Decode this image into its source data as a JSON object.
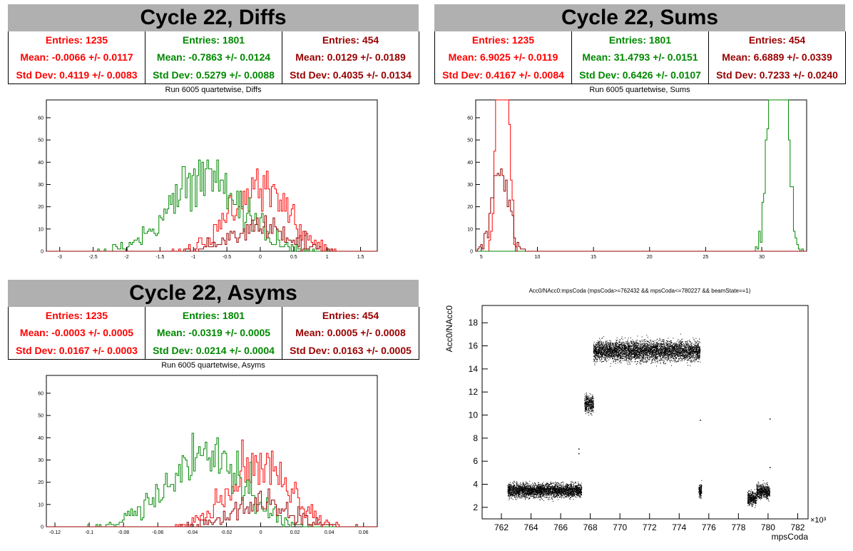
{
  "colors": {
    "red": "#ff0000",
    "green": "#008800",
    "darkred": "#990000"
  },
  "panels": [
    {
      "title": "Cycle 22, Diffs",
      "subtitle": "Run 6005 quartetwise, Diffs",
      "stats": [
        {
          "entries": "Entries: 1235",
          "mean": "Mean: -0.0066 +/- 0.0117",
          "std": "Std Dev: 0.4119 +/- 0.0083"
        },
        {
          "entries": "Entries: 1801",
          "mean": "Mean: -0.7863 +/- 0.0124",
          "std": "Std Dev: 0.5279 +/- 0.0088"
        },
        {
          "entries": "Entries: 454",
          "mean": "Mean: 0.0129 +/- 0.0189",
          "std": "Std Dev: 0.4035 +/- 0.0134"
        }
      ]
    },
    {
      "title": "Cycle 22, Sums",
      "subtitle": "Run 6005 quartetwise, Sums",
      "stats": [
        {
          "entries": "Entries: 1235",
          "mean": "Mean: 6.9025 +/- 0.0119",
          "std": "Std Dev: 0.4167 +/- 0.0084"
        },
        {
          "entries": "Entries: 1801",
          "mean": "Mean: 31.4793 +/- 0.0151",
          "std": "Std Dev: 0.6426 +/- 0.0107"
        },
        {
          "entries": "Entries: 454",
          "mean": "Mean: 6.6889 +/- 0.0339",
          "std": "Std Dev: 0.7233 +/- 0.0240"
        }
      ]
    },
    {
      "title": "Cycle 22, Asyms",
      "subtitle": "Run 6005 quartetwise, Asyms",
      "stats": [
        {
          "entries": "Entries: 1235",
          "mean": "Mean: -0.0003 +/- 0.0005",
          "std": "Std Dev: 0.0167 +/- 0.0003"
        },
        {
          "entries": "Entries: 1801",
          "mean": "Mean: -0.0319 +/- 0.0005",
          "std": "Std Dev: 0.0214 +/- 0.0004"
        },
        {
          "entries": "Entries: 454",
          "mean": "Mean: 0.0005 +/- 0.0008",
          "std": "Std Dev: 0.0163 +/- 0.0005"
        }
      ]
    }
  ],
  "chart_data": [
    {
      "type": "histogram",
      "title": "Run 6005 quartetwise, Diffs",
      "xlim": [
        -3.2,
        1.75
      ],
      "ylim": [
        0,
        68
      ],
      "xticks": [
        -3,
        -2.5,
        -2,
        -1.5,
        -1,
        -0.5,
        0,
        0.5,
        1,
        1.5
      ],
      "yticks": [
        0,
        10,
        20,
        30,
        40,
        50,
        60
      ],
      "series": [
        {
          "color": "#ff0000",
          "mean": -0.0066,
          "std": 0.4119,
          "entries": 1235
        },
        {
          "color": "#008800",
          "mean": -0.7863,
          "std": 0.5279,
          "entries": 1801
        },
        {
          "color": "#990000",
          "mean": 0.0129,
          "std": 0.4035,
          "entries": 454
        }
      ]
    },
    {
      "type": "histogram",
      "title": "Run 6005 quartetwise, Sums",
      "xlim": [
        4.5,
        34
      ],
      "ylim": [
        0,
        68
      ],
      "xticks": [
        5,
        10,
        15,
        20,
        25,
        30
      ],
      "yticks": [
        0,
        10,
        20,
        30,
        40,
        50,
        60
      ],
      "series": [
        {
          "color": "#ff0000",
          "mean": 6.9025,
          "std": 0.4167,
          "entries": 1235
        },
        {
          "color": "#008800",
          "mean": 31.4793,
          "std": 0.6426,
          "entries": 1801
        },
        {
          "color": "#990000",
          "mean": 6.6889,
          "std": 0.7233,
          "entries": 454
        }
      ]
    },
    {
      "type": "histogram",
      "title": "Run 6005 quartetwise, Asyms",
      "xlim": [
        -0.125,
        0.068
      ],
      "ylim": [
        0,
        68
      ],
      "xticks": [
        -0.12,
        -0.1,
        -0.08,
        -0.06,
        -0.04,
        -0.02,
        0,
        0.02,
        0.04,
        0.06
      ],
      "yticks": [
        0,
        10,
        20,
        30,
        40,
        50,
        60
      ],
      "series": [
        {
          "color": "#ff0000",
          "mean": -0.0003,
          "std": 0.0167,
          "entries": 1235
        },
        {
          "color": "#008800",
          "mean": -0.0319,
          "std": 0.0214,
          "entries": 1801
        },
        {
          "color": "#990000",
          "mean": 0.0005,
          "std": 0.0163,
          "entries": 454
        }
      ]
    },
    {
      "type": "scatter",
      "title": "Acc0/NAcc0:mpsCoda (mpsCoda>=762432 && mpsCoda<=780227 && beamState==1)",
      "xlabel": "mpsCoda",
      "ylabel": "Acc0/NAcc0",
      "xexp": "×10³",
      "xlim": [
        760.7,
        782.7
      ],
      "ylim": [
        1,
        19.5
      ],
      "xticks": [
        762,
        764,
        766,
        768,
        770,
        772,
        774,
        776,
        778,
        780,
        782
      ],
      "yticks": [
        2,
        4,
        6,
        8,
        10,
        12,
        14,
        16,
        18
      ],
      "clusters": [
        {
          "x": [
            762.4,
            767.4
          ],
          "y": 3.5,
          "spread": 0.35
        },
        {
          "x": [
            767.6,
            768.2
          ],
          "y": 11.0,
          "spread": 0.45
        },
        {
          "x": [
            768.2,
            775.4
          ],
          "y": 15.6,
          "spread": 0.5
        },
        {
          "x": [
            775.3,
            775.5
          ],
          "y": 3.5,
          "spread": 0.35
        },
        {
          "x": [
            778.6,
            779.2
          ],
          "y": 2.8,
          "spread": 0.35
        },
        {
          "x": [
            779.2,
            780.1
          ],
          "y": 3.4,
          "spread": 0.35
        }
      ]
    }
  ]
}
